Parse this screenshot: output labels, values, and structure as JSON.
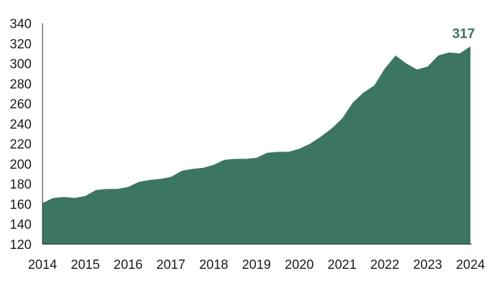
{
  "chart_data": {
    "type": "area",
    "title": "",
    "xlabel": "",
    "ylabel": "",
    "x_range": [
      2014,
      2024
    ],
    "ylim": [
      120,
      340
    ],
    "y_ticks": [
      120,
      140,
      160,
      180,
      200,
      220,
      240,
      260,
      280,
      300,
      320,
      340
    ],
    "x_ticks": [
      2014,
      2015,
      2016,
      2017,
      2018,
      2019,
      2020,
      2021,
      2022,
      2023,
      2024
    ],
    "x_tick_labels": [
      "2014",
      "2015",
      "2016",
      "2017",
      "2018",
      "2019",
      "2020",
      "2021",
      "2022",
      "2023",
      "2024"
    ],
    "y_tick_labels": [
      "120",
      "140",
      "160",
      "180",
      "200",
      "220",
      "240",
      "260",
      "280",
      "300",
      "320",
      "340"
    ],
    "grid": false,
    "color": "#3d7563",
    "end_label": "317",
    "series": [
      {
        "x": [
          2014.0,
          2014.25,
          2014.5,
          2014.75,
          2015.0,
          2015.25,
          2015.5,
          2015.75,
          2016.0,
          2016.25,
          2016.5,
          2016.75,
          2017.0,
          2017.25,
          2017.5,
          2017.75,
          2018.0,
          2018.25,
          2018.5,
          2018.75,
          2019.0,
          2019.25,
          2019.5,
          2019.75,
          2020.0,
          2020.25,
          2020.5,
          2020.75,
          2021.0,
          2021.25,
          2021.5,
          2021.75,
          2022.0,
          2022.25,
          2022.5,
          2022.75,
          2023.0,
          2023.25,
          2023.5,
          2023.75,
          2024.0
        ],
        "values": [
          161,
          166,
          167,
          166,
          168,
          174,
          175,
          175,
          177,
          182,
          184,
          185,
          187,
          193,
          195,
          196,
          199,
          204,
          205,
          205,
          206,
          211,
          212,
          212,
          215,
          220,
          227,
          235,
          245,
          261,
          271,
          278,
          295,
          308,
          300,
          294,
          297,
          308,
          311,
          310,
          317
        ]
      }
    ]
  }
}
